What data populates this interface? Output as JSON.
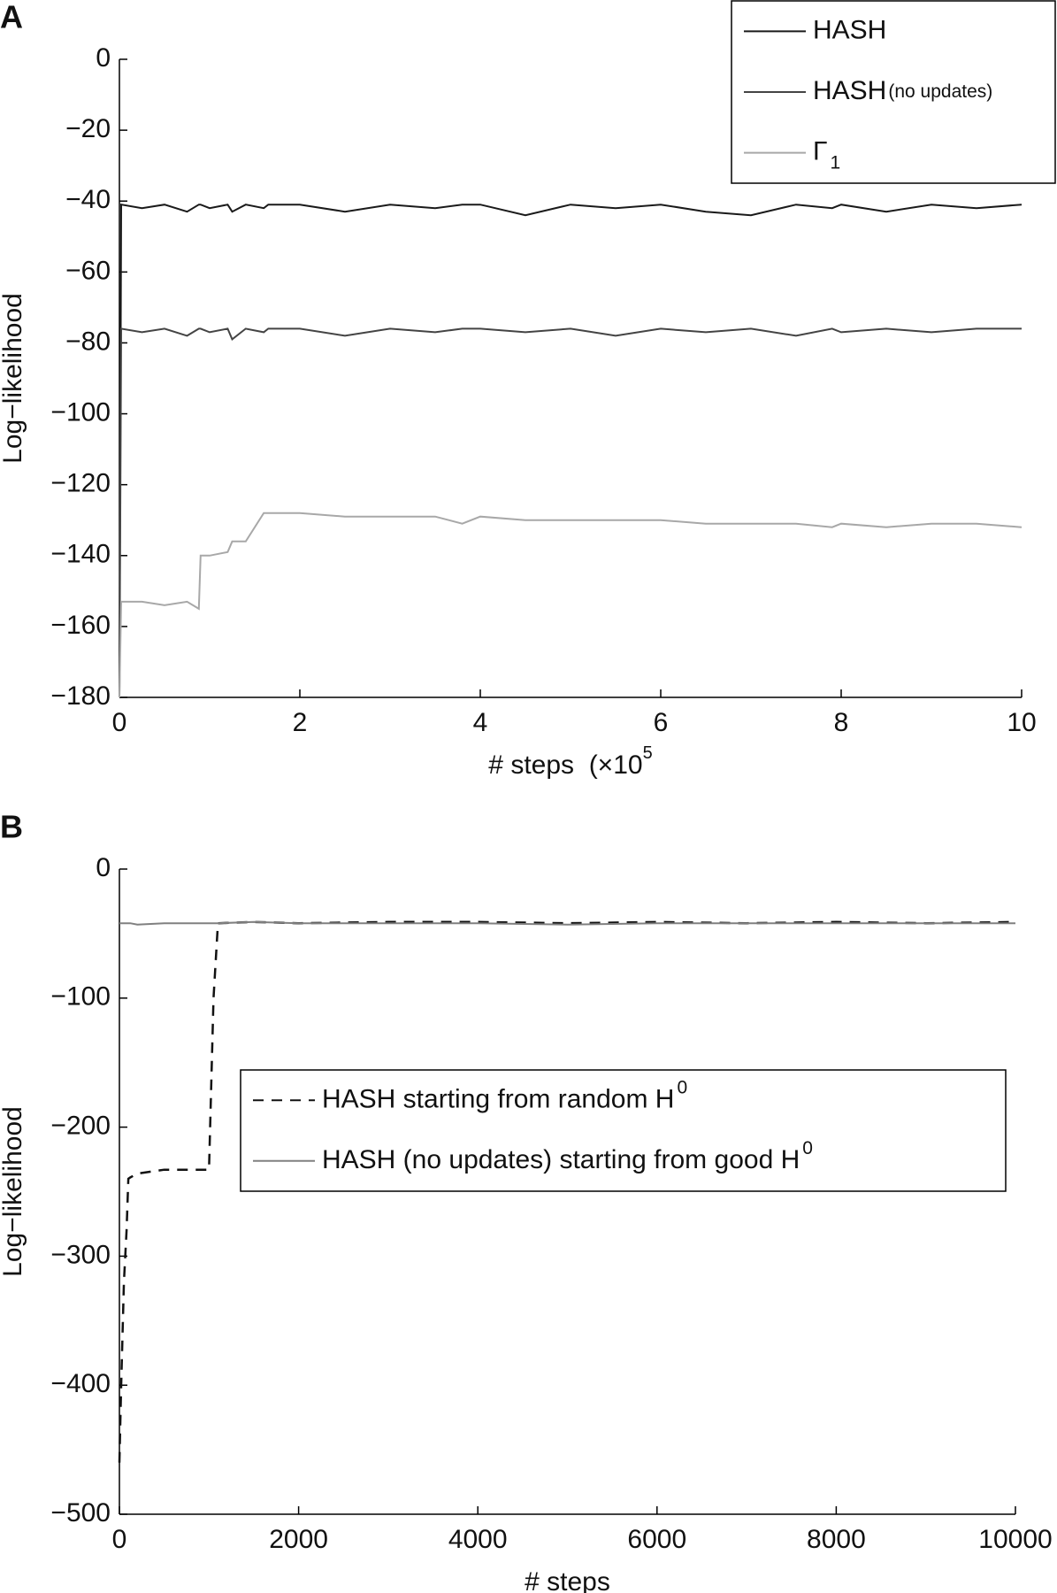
{
  "chart_data": [
    {
      "type": "line",
      "panel": "A",
      "ylabel": "Log−likelihood",
      "xlabel": "# steps  (×10",
      "xlabel_sup": "5",
      "xlim": [
        0,
        10
      ],
      "xticks": [
        0,
        2,
        4,
        6,
        8,
        10
      ],
      "ylim": [
        -180,
        0
      ],
      "yticks": [
        0,
        {
          "value": -20,
          "label": "−20"
        },
        {
          "value": -40,
          "label": "−40"
        },
        {
          "value": -60,
          "label": "−60"
        },
        {
          "value": -80,
          "label": "−80"
        },
        {
          "value": -100,
          "label": "−100"
        },
        {
          "value": -120,
          "label": "−120"
        },
        {
          "value": -140,
          "label": "−140"
        },
        {
          "value": -160,
          "label": "−160"
        },
        {
          "value": -180,
          "label": "−180"
        }
      ],
      "legend": "upper right",
      "x": [
        0,
        0.02,
        0.25,
        0.5,
        0.75,
        0.88,
        0.9,
        1.0,
        1.2,
        1.25,
        1.4,
        1.6,
        1.65,
        2,
        2.5,
        3,
        3.5,
        3.8,
        4,
        4.5,
        5,
        5.5,
        6,
        6.5,
        7,
        7.5,
        7.9,
        8,
        8.5,
        9,
        9.5,
        10
      ],
      "series": [
        {
          "name": "HASH",
          "color": "#1a1a1a",
          "values": [
            -180,
            -41,
            -42,
            -41,
            -43,
            -41,
            -41,
            -42,
            -41,
            -43,
            -41,
            -42,
            -41,
            -41,
            -43,
            -41,
            -42,
            -41,
            -41,
            -44,
            -41,
            -42,
            -41,
            -43,
            -44,
            -41,
            -42,
            -41,
            -43,
            -41,
            -42,
            -41
          ]
        },
        {
          "name": "HASH",
          "name_note": "(no updates)",
          "color": "#444444",
          "values": [
            -180,
            -76,
            -77,
            -76,
            -78,
            -76,
            -76,
            -77,
            -76,
            -79,
            -76,
            -77,
            -76,
            -76,
            -78,
            -76,
            -77,
            -76,
            -76,
            -77,
            -76,
            -78,
            -76,
            -77,
            -76,
            -78,
            -76,
            -77,
            -76,
            -77,
            -76,
            -76
          ]
        },
        {
          "name": "Γ",
          "name_sub": "1",
          "color": "#a8a8a8",
          "values": [
            -180,
            -153,
            -153,
            -154,
            -153,
            -155,
            -140,
            -140,
            -139,
            -136,
            -136,
            -128,
            -128,
            -128,
            -129,
            -129,
            -129,
            -131,
            -129,
            -130,
            -130,
            -130,
            -130,
            -131,
            -131,
            -131,
            -132,
            -131,
            -132,
            -131,
            -131,
            -132
          ]
        }
      ]
    },
    {
      "type": "line",
      "panel": "B",
      "ylabel": "Log−likelihood",
      "xlabel": "# steps",
      "xlim": [
        0,
        10000
      ],
      "xticks": [
        0,
        2000,
        4000,
        6000,
        8000,
        10000
      ],
      "ylim": [
        -500,
        0
      ],
      "yticks": [
        0,
        {
          "value": -100,
          "label": "−100"
        },
        {
          "value": -200,
          "label": "−200"
        },
        {
          "value": -300,
          "label": "−300"
        },
        {
          "value": -400,
          "label": "−400"
        },
        {
          "value": -500,
          "label": "−500"
        }
      ],
      "legend": "center",
      "x": [
        0,
        20,
        50,
        80,
        100,
        120,
        200,
        500,
        1000,
        1050,
        1100,
        1500,
        2000,
        3000,
        4000,
        5000,
        6000,
        7000,
        8000,
        9000,
        10000
      ],
      "series": [
        {
          "name": "HASH starting from random H",
          "name_sup": "0",
          "color": "#111111",
          "dashed": true,
          "values": [
            -460,
            -400,
            -320,
            -280,
            -240,
            -239,
            -236,
            -233,
            -233,
            -100,
            -42,
            -41,
            -42,
            -41,
            -41,
            -42,
            -41,
            -42,
            -41,
            -42,
            -41
          ]
        },
        {
          "name": "HASH (no updates) starting from good H",
          "name_sup": "0",
          "color": "#808080",
          "values": [
            -42,
            -42,
            -42,
            -42,
            -42,
            -42,
            -43,
            -42,
            -42,
            -42,
            -42,
            -41,
            -42,
            -42,
            -42,
            -43,
            -42,
            -42,
            -42,
            -42,
            -42
          ]
        }
      ]
    }
  ]
}
